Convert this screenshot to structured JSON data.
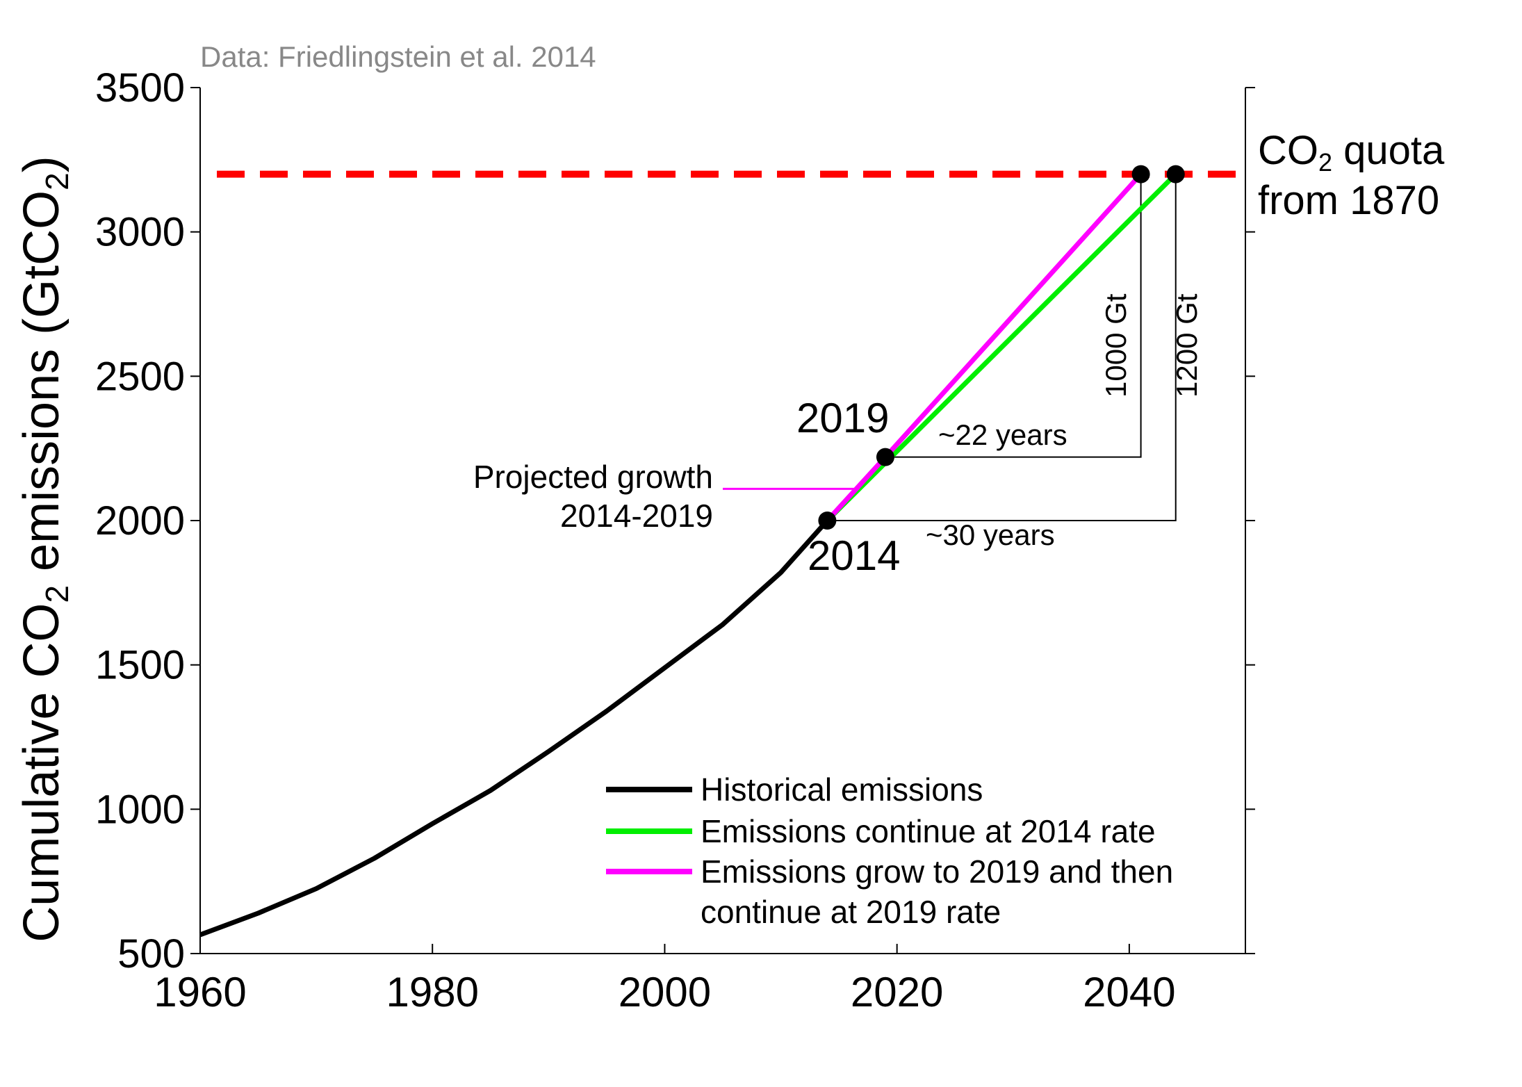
{
  "chart_data": {
    "type": "line",
    "source_note": "Data: Friedlingstein et al. 2014",
    "ylabel": "Cumulative CO2 emissions (GtCO2)",
    "ylabel_parts": {
      "pre": "Cumulative CO",
      "sub": "2",
      "mid": " emissions (GtCO",
      "sub2": "2",
      "post": ")"
    },
    "xlim": [
      1960,
      2050
    ],
    "ylim": [
      500,
      3500
    ],
    "x_ticks": [
      1960,
      1980,
      2000,
      2020,
      2040
    ],
    "x_tick_labels": [
      "1960",
      "1980",
      "2000",
      "2020",
      "2040"
    ],
    "y_ticks": [
      500,
      1000,
      1500,
      2000,
      2500,
      3000,
      3500
    ],
    "y_tick_labels": [
      "500",
      "1000",
      "1500",
      "2000",
      "2500",
      "3000",
      "3500"
    ],
    "colors": {
      "historical": "#000000",
      "rate2014": "#00ee00",
      "growth2019": "#ff00ff",
      "quota": "#ff0000",
      "note": "#888888"
    },
    "series": [
      {
        "key": "historical",
        "name": "Historical emissions",
        "x": [
          1960,
          1965,
          1970,
          1975,
          1980,
          1985,
          1990,
          1995,
          2000,
          2005,
          2010,
          2014
        ],
        "y": [
          565,
          640,
          725,
          830,
          950,
          1065,
          1200,
          1340,
          1490,
          1640,
          1820,
          2000
        ]
      },
      {
        "key": "rate2014",
        "name": "Emissions continue at 2014 rate",
        "x": [
          2014,
          2044
        ],
        "y": [
          2000,
          3200
        ]
      },
      {
        "key": "growth2019",
        "name": "Emissions grow to 2019 and then continue at 2019 rate",
        "x": [
          2014,
          2019,
          2041
        ],
        "y": [
          2000,
          2220,
          3200
        ]
      }
    ],
    "legend": {
      "placement": "bottom-right",
      "entries": [
        {
          "key": "historical",
          "lines": [
            "Historical emissions"
          ]
        },
        {
          "key": "rate2014",
          "lines": [
            "Emissions continue at 2014 rate"
          ]
        },
        {
          "key": "growth2019",
          "lines": [
            "Emissions grow to 2019 and then",
            "continue at 2019 rate"
          ]
        }
      ]
    },
    "quota": {
      "y": 3200,
      "label_line1_pre": "CO",
      "label_line1_sub": "2",
      "label_line1_post": " quota",
      "label_line2": "from 1870"
    },
    "points": [
      {
        "x": 2014,
        "y": 2000,
        "label": "2014"
      },
      {
        "x": 2019,
        "y": 2220,
        "label": "2019"
      },
      {
        "x": 2041,
        "y": 3200,
        "label": ""
      },
      {
        "x": 2044,
        "y": 3200,
        "label": ""
      }
    ],
    "annotations": {
      "projected_growth": [
        "Projected growth",
        "2014-2019"
      ],
      "years_22": "~22 years",
      "years_30": "~30 years",
      "gt_1000": "1000 Gt",
      "gt_1200": "1200 Gt"
    }
  }
}
